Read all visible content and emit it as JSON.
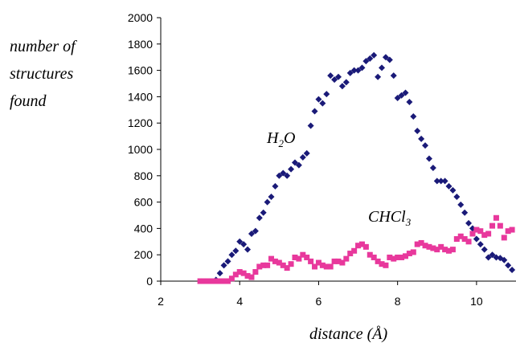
{
  "chart_data": {
    "type": "scatter",
    "ylabel": [
      "number of",
      "structures",
      "found"
    ],
    "xlabel": "distance (Å)",
    "xlim": [
      2,
      11
    ],
    "ylim": [
      0,
      2000
    ],
    "xticks": [
      "2",
      "4",
      "6",
      "8",
      "10"
    ],
    "yticks": [
      "0",
      "200",
      "400",
      "600",
      "800",
      "1000",
      "1200",
      "1400",
      "1600",
      "1800",
      "2000"
    ],
    "grid": false,
    "annotations": [
      {
        "series": "water",
        "base": "H",
        "sub": "2",
        "tail": "O"
      },
      {
        "series": "chloroform",
        "base": "CHCl",
        "sub": "3",
        "tail": ""
      }
    ],
    "series": [
      {
        "name": "H2O",
        "color": "#1a1a78",
        "marker": "diamond",
        "points": [
          [
            3.4,
            10
          ],
          [
            3.5,
            60
          ],
          [
            3.6,
            120
          ],
          [
            3.7,
            150
          ],
          [
            3.8,
            200
          ],
          [
            3.9,
            230
          ],
          [
            4.0,
            300
          ],
          [
            4.1,
            280
          ],
          [
            4.2,
            240
          ],
          [
            4.3,
            360
          ],
          [
            4.4,
            380
          ],
          [
            4.5,
            480
          ],
          [
            4.6,
            520
          ],
          [
            4.7,
            600
          ],
          [
            4.8,
            640
          ],
          [
            4.9,
            720
          ],
          [
            5.0,
            800
          ],
          [
            5.1,
            820
          ],
          [
            5.2,
            800
          ],
          [
            5.3,
            850
          ],
          [
            5.4,
            900
          ],
          [
            5.5,
            880
          ],
          [
            5.6,
            940
          ],
          [
            5.7,
            970
          ],
          [
            5.8,
            1180
          ],
          [
            5.9,
            1290
          ],
          [
            6.0,
            1380
          ],
          [
            6.1,
            1350
          ],
          [
            6.2,
            1420
          ],
          [
            6.3,
            1560
          ],
          [
            6.4,
            1530
          ],
          [
            6.5,
            1550
          ],
          [
            6.6,
            1480
          ],
          [
            6.7,
            1510
          ],
          [
            6.8,
            1580
          ],
          [
            6.9,
            1600
          ],
          [
            7.0,
            1600
          ],
          [
            7.1,
            1620
          ],
          [
            7.2,
            1670
          ],
          [
            7.3,
            1690
          ],
          [
            7.4,
            1715
          ],
          [
            7.5,
            1550
          ],
          [
            7.6,
            1620
          ],
          [
            7.7,
            1700
          ],
          [
            7.8,
            1680
          ],
          [
            7.9,
            1560
          ],
          [
            8.0,
            1390
          ],
          [
            8.1,
            1410
          ],
          [
            8.2,
            1430
          ],
          [
            8.3,
            1360
          ],
          [
            8.4,
            1250
          ],
          [
            8.5,
            1140
          ],
          [
            8.6,
            1080
          ],
          [
            8.7,
            1030
          ],
          [
            8.8,
            930
          ],
          [
            8.9,
            860
          ],
          [
            9.0,
            760
          ],
          [
            9.1,
            760
          ],
          [
            9.2,
            760
          ],
          [
            9.3,
            720
          ],
          [
            9.4,
            690
          ],
          [
            9.5,
            640
          ],
          [
            9.6,
            580
          ],
          [
            9.7,
            520
          ],
          [
            9.8,
            440
          ],
          [
            9.9,
            400
          ],
          [
            10.0,
            320
          ],
          [
            10.1,
            280
          ],
          [
            10.2,
            240
          ],
          [
            10.3,
            180
          ],
          [
            10.4,
            200
          ],
          [
            10.5,
            180
          ],
          [
            10.6,
            175
          ],
          [
            10.7,
            160
          ],
          [
            10.8,
            120
          ],
          [
            10.9,
            85
          ]
        ]
      },
      {
        "name": "CHCl3",
        "color": "#e8389c",
        "marker": "square",
        "points": [
          [
            3.0,
            0
          ],
          [
            3.1,
            0
          ],
          [
            3.2,
            0
          ],
          [
            3.3,
            0
          ],
          [
            3.4,
            0
          ],
          [
            3.5,
            0
          ],
          [
            3.6,
            0
          ],
          [
            3.7,
            0
          ],
          [
            3.8,
            20
          ],
          [
            3.9,
            50
          ],
          [
            4.0,
            70
          ],
          [
            4.1,
            60
          ],
          [
            4.2,
            40
          ],
          [
            4.3,
            30
          ],
          [
            4.4,
            70
          ],
          [
            4.5,
            110
          ],
          [
            4.6,
            120
          ],
          [
            4.7,
            120
          ],
          [
            4.8,
            170
          ],
          [
            4.9,
            150
          ],
          [
            5.0,
            140
          ],
          [
            5.1,
            120
          ],
          [
            5.2,
            100
          ],
          [
            5.3,
            130
          ],
          [
            5.4,
            180
          ],
          [
            5.5,
            170
          ],
          [
            5.6,
            200
          ],
          [
            5.7,
            180
          ],
          [
            5.8,
            150
          ],
          [
            5.9,
            110
          ],
          [
            6.0,
            140
          ],
          [
            6.1,
            120
          ],
          [
            6.2,
            110
          ],
          [
            6.3,
            110
          ],
          [
            6.4,
            150
          ],
          [
            6.5,
            150
          ],
          [
            6.6,
            140
          ],
          [
            6.7,
            170
          ],
          [
            6.8,
            210
          ],
          [
            6.9,
            230
          ],
          [
            7.0,
            270
          ],
          [
            7.1,
            280
          ],
          [
            7.2,
            260
          ],
          [
            7.3,
            200
          ],
          [
            7.4,
            180
          ],
          [
            7.5,
            150
          ],
          [
            7.6,
            130
          ],
          [
            7.7,
            120
          ],
          [
            7.8,
            180
          ],
          [
            7.9,
            170
          ],
          [
            8.0,
            180
          ],
          [
            8.1,
            180
          ],
          [
            8.2,
            190
          ],
          [
            8.3,
            210
          ],
          [
            8.4,
            220
          ],
          [
            8.5,
            280
          ],
          [
            8.6,
            290
          ],
          [
            8.7,
            270
          ],
          [
            8.8,
            260
          ],
          [
            8.9,
            250
          ],
          [
            9.0,
            240
          ],
          [
            9.1,
            260
          ],
          [
            9.2,
            240
          ],
          [
            9.3,
            230
          ],
          [
            9.4,
            240
          ],
          [
            9.5,
            320
          ],
          [
            9.6,
            340
          ],
          [
            9.7,
            320
          ],
          [
            9.8,
            300
          ],
          [
            9.9,
            360
          ],
          [
            10.0,
            390
          ],
          [
            10.1,
            380
          ],
          [
            10.2,
            350
          ],
          [
            10.3,
            360
          ],
          [
            10.4,
            420
          ],
          [
            10.5,
            480
          ],
          [
            10.6,
            420
          ],
          [
            10.7,
            330
          ],
          [
            10.8,
            380
          ],
          [
            10.9,
            390
          ]
        ]
      }
    ]
  }
}
